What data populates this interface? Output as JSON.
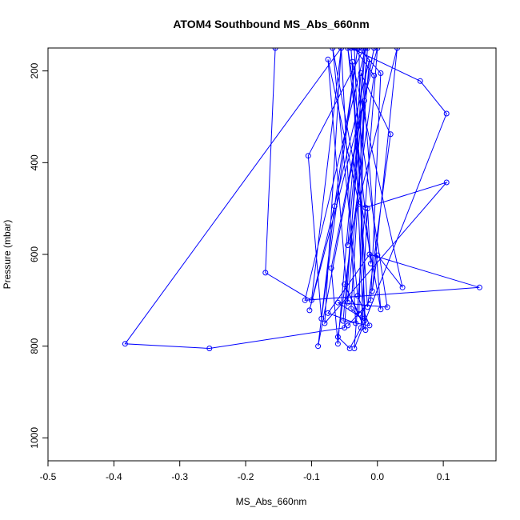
{
  "chart_data": {
    "type": "line",
    "title": "ATOM4 Southbound MS_Abs_660nm",
    "xlabel": "MS_Abs_660nm",
    "ylabel": "Pressure (mbar)",
    "xlim": [
      -0.5,
      0.18
    ],
    "ylim": [
      1050,
      150
    ],
    "y_reversed": true,
    "x_ticks": [
      -0.5,
      -0.4,
      -0.3,
      -0.2,
      -0.1,
      0.0,
      0.1
    ],
    "x_tick_labels": [
      "-0.5",
      "-0.4",
      "-0.3",
      "-0.2",
      "-0.1",
      "0.0",
      "0.1"
    ],
    "y_ticks": [
      200,
      400,
      600,
      800,
      1000
    ],
    "y_tick_labels": [
      "200",
      "400",
      "600",
      "800",
      "1000"
    ],
    "grid": false,
    "color": "#0000ff",
    "series": [
      {
        "marker": "open-circle",
        "points": [
          [
            -0.155,
            150
          ],
          [
            -0.17,
            640
          ],
          [
            -0.1,
            700
          ],
          [
            -0.055,
            150
          ],
          [
            -0.383,
            795
          ],
          [
            -0.255,
            805
          ],
          [
            -0.05,
            760
          ],
          [
            -0.02,
            150
          ],
          [
            -0.105,
            385
          ],
          [
            -0.085,
            740
          ],
          [
            -0.03,
            150
          ],
          [
            -0.065,
            495
          ],
          [
            -0.09,
            800
          ],
          [
            -0.005,
            150
          ],
          [
            -0.07,
            630
          ],
          [
            -0.06,
            795
          ],
          [
            -0.025,
            205
          ],
          [
            0.02,
            338
          ],
          [
            -0.015,
            715
          ],
          [
            -0.04,
            150
          ],
          [
            0.065,
            222
          ],
          [
            0.105,
            293
          ],
          [
            -0.035,
            805
          ],
          [
            0.0,
            150
          ],
          [
            -0.103,
            722
          ],
          [
            -0.012,
            175
          ],
          [
            -0.045,
            705
          ],
          [
            -0.075,
            175
          ],
          [
            -0.028,
            490
          ],
          [
            -0.018,
            498
          ],
          [
            0.105,
            443
          ],
          [
            -0.08,
            750
          ],
          [
            -0.055,
            150
          ],
          [
            -0.033,
            750
          ],
          [
            -0.075,
            728
          ],
          [
            -0.012,
            600
          ],
          [
            0.155,
            672
          ],
          [
            -0.11,
            700
          ],
          [
            -0.018,
            150
          ],
          [
            -0.045,
            580
          ],
          [
            0.03,
            150
          ],
          [
            -0.008,
            680
          ],
          [
            0.0,
            602
          ],
          [
            0.038,
            672
          ],
          [
            -0.038,
            180
          ],
          [
            -0.022,
            740
          ],
          [
            -0.06,
            705
          ],
          [
            0.015,
            715
          ],
          [
            -0.045,
            150
          ],
          [
            -0.01,
            620
          ],
          [
            -0.015,
            500
          ],
          [
            -0.025,
            760
          ],
          [
            -0.042,
            805
          ],
          [
            -0.06,
            780
          ],
          [
            -0.005,
            210
          ],
          [
            -0.035,
            150
          ],
          [
            -0.018,
            765
          ],
          [
            -0.05,
            665
          ],
          [
            -0.028,
            730
          ],
          [
            -0.02,
            265
          ],
          [
            0.005,
            720
          ],
          [
            -0.068,
            150
          ],
          [
            -0.03,
            690
          ],
          [
            -0.012,
            755
          ],
          [
            -0.052,
            745
          ],
          [
            -0.015,
            150
          ],
          [
            -0.04,
            718
          ],
          [
            -0.02,
            745
          ],
          [
            -0.028,
            150
          ],
          [
            0.005,
            205
          ],
          [
            -0.01,
            700
          ],
          [
            -0.045,
            755
          ]
        ]
      }
    ]
  }
}
